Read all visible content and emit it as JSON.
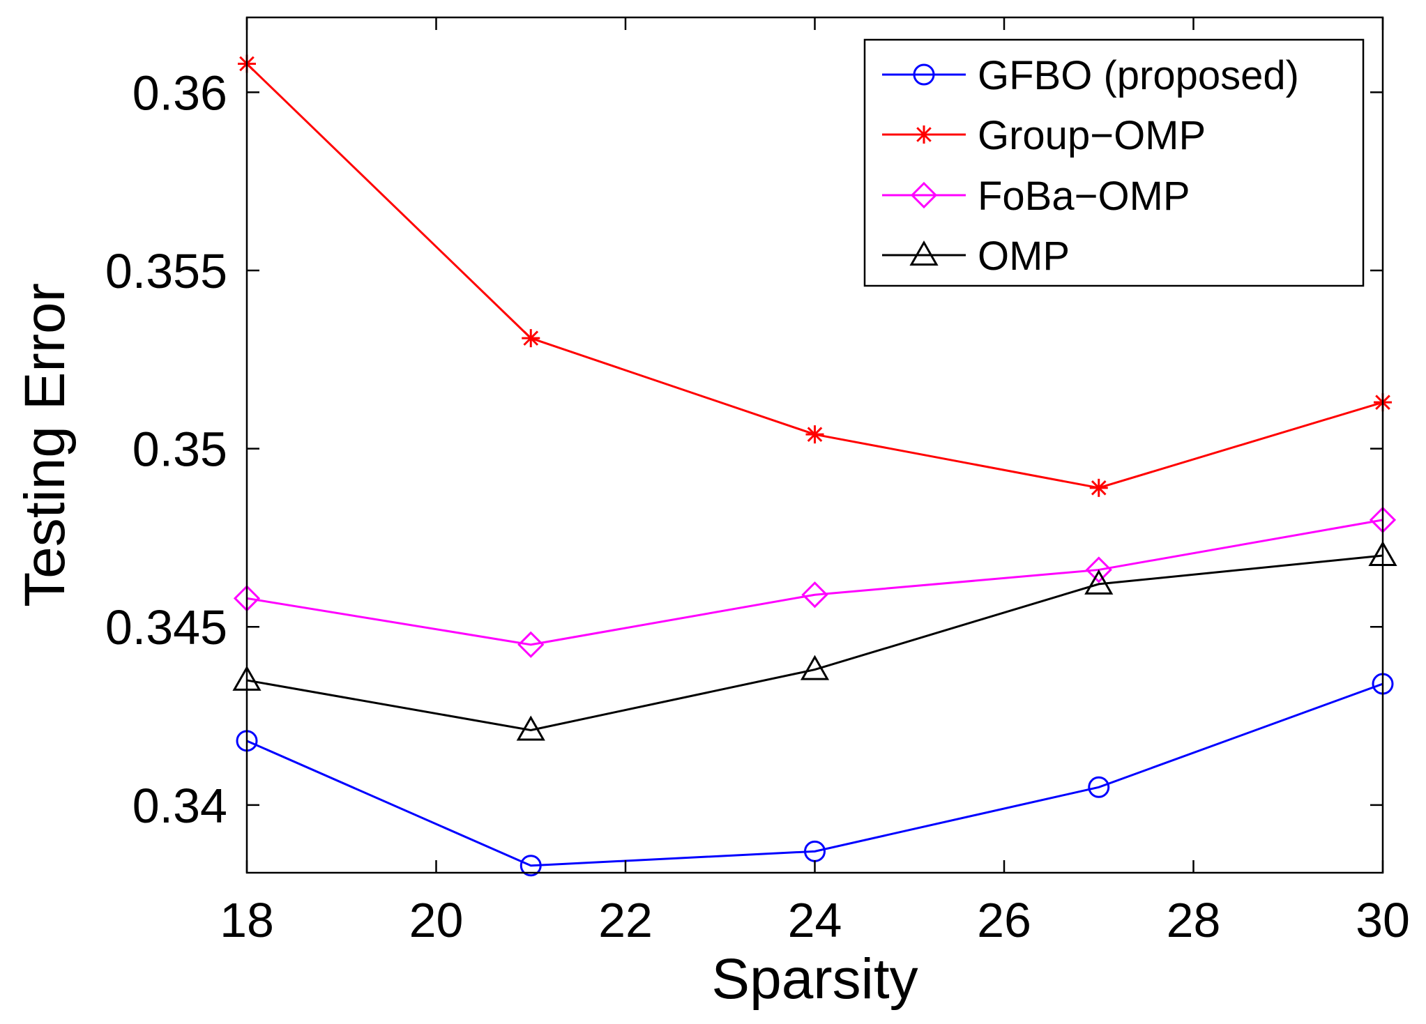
{
  "chart_data": {
    "type": "line",
    "title": "",
    "xlabel": "Sparsity",
    "ylabel": "Testing Error",
    "xlim": [
      18,
      30
    ],
    "ylim": [
      0.3381,
      0.3621
    ],
    "x": [
      18,
      21,
      24,
      27,
      30
    ],
    "xticks": [
      18,
      20,
      22,
      24,
      26,
      28,
      30
    ],
    "xtick_labels": [
      "18",
      "20",
      "22",
      "24",
      "26",
      "28",
      "30"
    ],
    "yticks": [
      0.34,
      0.345,
      0.35,
      0.355,
      0.36
    ],
    "ytick_labels": [
      "0.34",
      "0.345",
      "0.35",
      "0.355",
      "0.36"
    ],
    "grid": false,
    "legend_position": "top-right",
    "series": [
      {
        "name": "GFBO (proposed)",
        "color": "#0000ff",
        "marker": "circle",
        "values": [
          0.3418,
          0.3383,
          0.3387,
          0.3405,
          0.3434
        ]
      },
      {
        "name": "Group−OMP",
        "color": "#ff0000",
        "marker": "asterisk",
        "values": [
          0.3608,
          0.3531,
          0.3504,
          0.3489,
          0.3513
        ]
      },
      {
        "name": "FoBa−OMP",
        "color": "#ff00ff",
        "marker": "diamond",
        "values": [
          0.3458,
          0.3445,
          0.3459,
          0.3466,
          0.348
        ]
      },
      {
        "name": "OMP",
        "color": "#000000",
        "marker": "triangle",
        "values": [
          0.3435,
          0.3421,
          0.3438,
          0.3462,
          0.347
        ]
      }
    ]
  }
}
